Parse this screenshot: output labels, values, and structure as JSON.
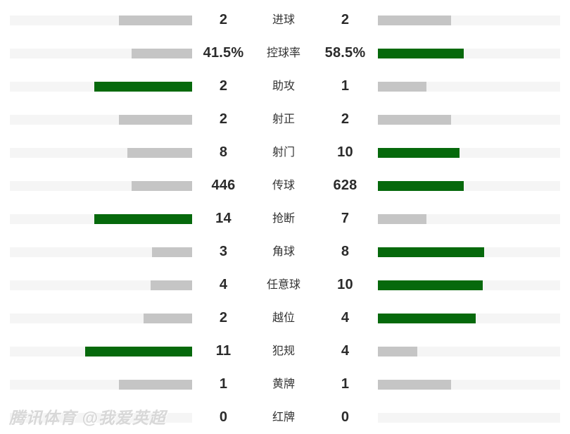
{
  "colors": {
    "winner_bar": "#06690c",
    "neutral_bar": "#c5c5c5",
    "bar_track": "#f5f5f5",
    "value_text": "#2b2b2b",
    "label_text": "#333333",
    "background": "#ffffff"
  },
  "watermark": {
    "text": "腾讯体育 @我爱英超"
  },
  "rows": [
    {
      "label": "进球",
      "left": "2",
      "right": "2",
      "highlight": "none"
    },
    {
      "label": "控球率",
      "left": "41.5%",
      "right": "58.5%",
      "highlight": "right"
    },
    {
      "label": "助攻",
      "left": "2",
      "right": "1",
      "highlight": "left"
    },
    {
      "label": "射正",
      "left": "2",
      "right": "2",
      "highlight": "none"
    },
    {
      "label": "射门",
      "left": "8",
      "right": "10",
      "highlight": "right"
    },
    {
      "label": "传球",
      "left": "446",
      "right": "628",
      "highlight": "right"
    },
    {
      "label": "抢断",
      "left": "14",
      "right": "7",
      "highlight": "left"
    },
    {
      "label": "角球",
      "left": "3",
      "right": "8",
      "highlight": "right"
    },
    {
      "label": "任意球",
      "left": "4",
      "right": "10",
      "highlight": "right"
    },
    {
      "label": "越位",
      "left": "2",
      "right": "4",
      "highlight": "right"
    },
    {
      "label": "犯规",
      "left": "11",
      "right": "4",
      "highlight": "left"
    },
    {
      "label": "黄牌",
      "left": "1",
      "right": "1",
      "highlight": "none"
    },
    {
      "label": "红牌",
      "left": "0",
      "right": "0",
      "highlight": "none"
    }
  ],
  "chart_data": {
    "type": "bar",
    "subtype": "diverging-comparison",
    "title": "",
    "categories": [
      "进球",
      "控球率",
      "助攻",
      "射正",
      "射门",
      "传球",
      "抢断",
      "角球",
      "任意球",
      "越位",
      "犯规",
      "黄牌",
      "红牌"
    ],
    "series": [
      {
        "name": "left-team",
        "values": [
          2,
          41.5,
          2,
          2,
          8,
          446,
          14,
          3,
          4,
          2,
          11,
          1,
          0
        ]
      },
      {
        "name": "right-team",
        "values": [
          2,
          58.5,
          1,
          2,
          10,
          628,
          7,
          8,
          10,
          4,
          4,
          1,
          0
        ]
      }
    ],
    "value_labels": {
      "left": [
        "2",
        "41.5%",
        "2",
        "2",
        "8",
        "446",
        "14",
        "3",
        "4",
        "2",
        "11",
        "1",
        "0"
      ],
      "right": [
        "2",
        "58.5%",
        "1",
        "2",
        "10",
        "628",
        "7",
        "8",
        "10",
        "4",
        "4",
        "1",
        "0"
      ]
    },
    "bar_scale_rule": "fill width proportional to value / (left+right), max pair width 208px of 259px track",
    "highlight_rule": "higher value side is green, equal or zero values gray/empty",
    "grid": false,
    "legend": false
  }
}
